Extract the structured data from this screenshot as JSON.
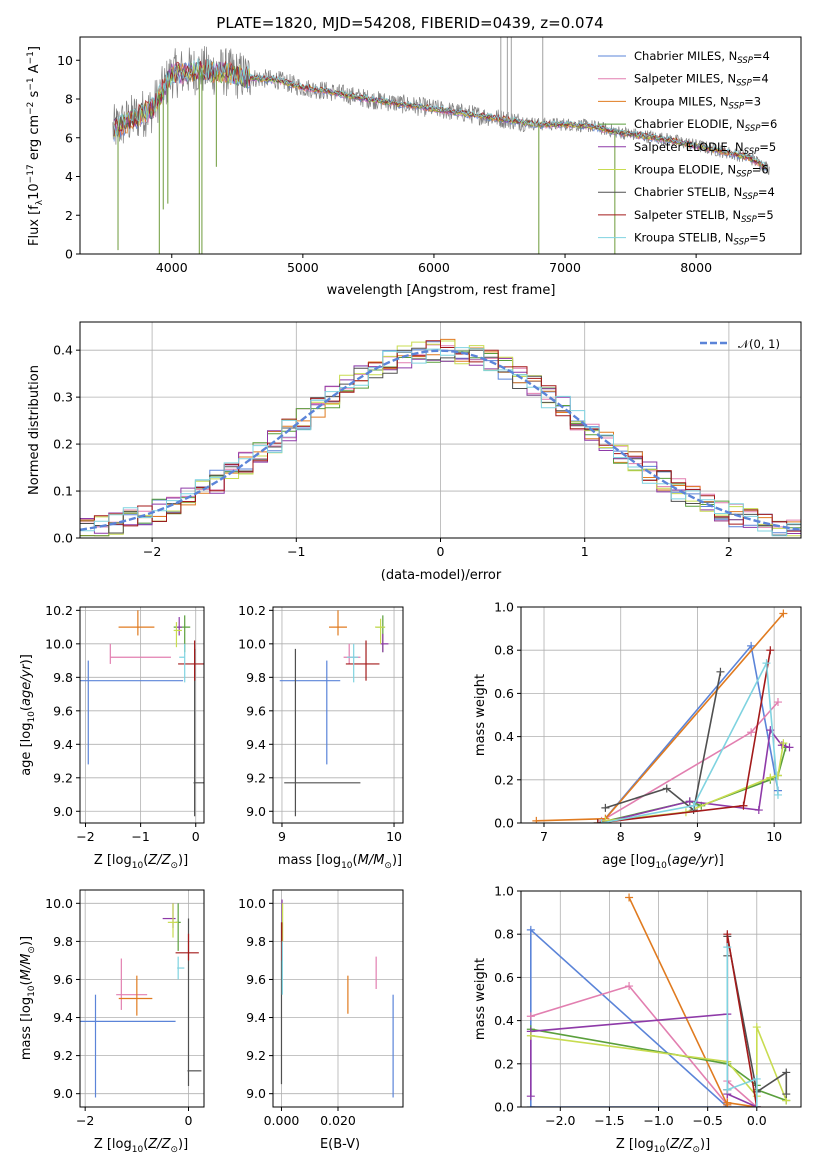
{
  "colors": {
    "chabrier_miles": "#5b84d8",
    "salpeter_miles": "#e27fb0",
    "kroupa_miles": "#e07b20",
    "chabrier_elodie": "#5a9f3c",
    "salpeter_elodie": "#8e3aa8",
    "kroupa_elodie": "#c8dc50",
    "chabrier_stelib": "#505050",
    "salpeter_stelib": "#a31a1a",
    "kroupa_stelib": "#7fd3e0",
    "spectrum": "#808080",
    "normal_curve": "#5b84d8"
  },
  "chart_data": [
    {
      "id": "spectrum",
      "type": "line",
      "title": "PLATE=1820, MJD=54208, FIBERID=0439, z=0.074",
      "xlabel": "wavelength [Angstrom, rest frame]",
      "ylabel": "Flux [fλ10⁻¹⁷ erg cm⁻² s⁻¹ A⁻¹]",
      "xlim": [
        3300,
        8800
      ],
      "ylim": [
        0,
        11.2
      ],
      "xticks": [
        4000,
        5000,
        6000,
        7000,
        8000
      ],
      "yticks": [
        0,
        2,
        4,
        6,
        8,
        10
      ],
      "grid": false,
      "legend_position": "top-right",
      "continuum": {
        "x": [
          3550,
          3700,
          3850,
          4000,
          4200,
          4400,
          4600,
          4800,
          5000,
          5200,
          5500,
          5800,
          6000,
          6200,
          6500,
          6800,
          7000,
          7200,
          7400,
          7600,
          7800,
          8000,
          8200,
          8400,
          8560
        ],
        "y": [
          6.4,
          7.0,
          7.5,
          9.3,
          9.5,
          9.4,
          9.1,
          9.0,
          8.6,
          8.4,
          8.0,
          7.7,
          7.5,
          7.3,
          7.0,
          6.7,
          6.7,
          6.6,
          6.3,
          6.1,
          5.9,
          5.6,
          5.3,
          5.0,
          4.4
        ]
      },
      "absorption_lines": [
        {
          "x": 3590,
          "y": 0.2
        },
        {
          "x": 3905,
          "y": 0.0
        },
        {
          "x": 3935,
          "y": 2.3
        },
        {
          "x": 3970,
          "y": 2.6
        },
        {
          "x": 4210,
          "y": 0.0
        },
        {
          "x": 4230,
          "y": 0.0
        },
        {
          "x": 4340,
          "y": 4.5
        },
        {
          "x": 6800,
          "y": 0.0
        },
        {
          "x": 7380,
          "y": 0.0
        }
      ],
      "spikes": [
        {
          "x": 6510,
          "y": 11.2
        },
        {
          "x": 6560,
          "y": 11.2
        },
        {
          "x": 6590,
          "y": 11.2
        },
        {
          "x": 6830,
          "y": 11.2
        }
      ],
      "legend": [
        {
          "key": "chabrier_miles",
          "label": "Chabrier MILES, N",
          "sub": "SSP",
          "tail": "=4"
        },
        {
          "key": "salpeter_miles",
          "label": "Salpeter MILES, N",
          "sub": "SSP",
          "tail": "=4"
        },
        {
          "key": "kroupa_miles",
          "label": "Kroupa MILES, N",
          "sub": "SSP",
          "tail": "=3"
        },
        {
          "key": "chabrier_elodie",
          "label": "Chabrier ELODIE, N",
          "sub": "SSP",
          "tail": "=6"
        },
        {
          "key": "salpeter_elodie",
          "label": "Salpeter ELODIE, N",
          "sub": "SSP",
          "tail": "=5"
        },
        {
          "key": "kroupa_elodie",
          "label": "Kroupa ELODIE, N",
          "sub": "SSP",
          "tail": "=6"
        },
        {
          "key": "chabrier_stelib",
          "label": "Chabrier STELIB, N",
          "sub": "SSP",
          "tail": "=4"
        },
        {
          "key": "salpeter_stelib",
          "label": "Salpeter STELIB, N",
          "sub": "SSP",
          "tail": "=5"
        },
        {
          "key": "kroupa_stelib",
          "label": "Kroupa STELIB, N",
          "sub": "SSP",
          "tail": "=5"
        }
      ]
    },
    {
      "id": "residuals",
      "type": "line",
      "xlabel": "(data-model)/error",
      "ylabel": "Normed distribution",
      "xlim": [
        -2.5,
        2.5
      ],
      "ylim": [
        0,
        0.46
      ],
      "xticks": [
        -2,
        -1,
        0,
        1,
        2
      ],
      "yticks": [
        0.0,
        0.1,
        0.2,
        0.3,
        0.4
      ],
      "grid": true,
      "legend_position": "top-right",
      "legend": [
        {
          "label": "𝒩(0, 1)"
        }
      ],
      "normal": {
        "mean": 0,
        "sigma": 1
      },
      "bin_width": 0.1,
      "bin_start": -2.5
    },
    {
      "id": "age_vs_z",
      "type": "scatter",
      "xlabel": "Z [log₁₀(Z/Z⊙)]",
      "ylabel": "age  [log₁₀(age/yr)]",
      "xlim": [
        -2.1,
        0.15
      ],
      "ylim": [
        8.93,
        10.22
      ],
      "xticks": [
        -2,
        -1,
        0
      ],
      "yticks": [
        9.0,
        9.2,
        9.4,
        9.6,
        9.8,
        10.0,
        10.2
      ],
      "grid": true,
      "points": [
        {
          "key": "chabrier_miles",
          "x": -1.95,
          "y": 9.78,
          "xerr": [
            0.85,
            1.72
          ],
          "yerr": [
            0.5,
            0.12
          ]
        },
        {
          "key": "salpeter_miles",
          "x": -1.55,
          "y": 9.92,
          "xerr": [
            0.0,
            1.1
          ],
          "yerr": [
            0.04,
            0.08
          ]
        },
        {
          "key": "kroupa_miles",
          "x": -1.05,
          "y": 10.1,
          "xerr": [
            0.35,
            0.3
          ],
          "yerr": [
            0.05,
            0.1
          ]
        },
        {
          "key": "chabrier_elodie",
          "x": -0.2,
          "y": 10.1,
          "xerr": [
            0.2,
            0.1
          ],
          "yerr": [
            0.15,
            0.07
          ]
        },
        {
          "key": "salpeter_elodie",
          "x": -0.3,
          "y": 10.1,
          "xerr": [
            0.05,
            0.05
          ],
          "yerr": [
            0.05,
            0.06
          ]
        },
        {
          "key": "kroupa_elodie",
          "x": -0.35,
          "y": 10.08,
          "xerr": [
            0.05,
            0.1
          ],
          "yerr": [
            0.1,
            0.05
          ]
        },
        {
          "key": "chabrier_stelib",
          "x": -0.02,
          "y": 9.17,
          "xerr": [
            0.02,
            0.3
          ],
          "yerr": [
            0.2,
            0.8
          ]
        },
        {
          "key": "salpeter_stelib",
          "x": -0.02,
          "y": 9.88,
          "xerr": [
            0.3,
            0.3
          ],
          "yerr": [
            0.1,
            0.14
          ]
        },
        {
          "key": "kroupa_stelib",
          "x": -0.2,
          "y": 9.92,
          "xerr": [
            0.1,
            0.0
          ],
          "yerr": [
            0.15,
            0.08
          ]
        }
      ]
    },
    {
      "id": "age_vs_mass",
      "type": "scatter",
      "xlabel": "mass [log₁₀(M/M⊙)]",
      "ylabel": "",
      "xlim": [
        8.92,
        10.08
      ],
      "ylim": [
        8.93,
        10.22
      ],
      "xticks": [
        9,
        10
      ],
      "yticks": [
        9.0,
        9.2,
        9.4,
        9.6,
        9.8,
        10.0,
        10.2
      ],
      "grid": true,
      "points": [
        {
          "key": "chabrier_miles",
          "x": 9.4,
          "y": 9.78,
          "xerr": [
            0.42,
            0.12
          ],
          "yerr": [
            0.5,
            0.12
          ]
        },
        {
          "key": "salpeter_miles",
          "x": 9.6,
          "y": 9.92,
          "xerr": [
            0.05,
            0.1
          ],
          "yerr": [
            0.04,
            0.08
          ]
        },
        {
          "key": "kroupa_miles",
          "x": 9.5,
          "y": 10.1,
          "xerr": [
            0.08,
            0.08
          ],
          "yerr": [
            0.05,
            0.1
          ]
        },
        {
          "key": "chabrier_elodie",
          "x": 9.9,
          "y": 10.1,
          "xerr": [
            0.06,
            0.02
          ],
          "yerr": [
            0.15,
            0.07
          ]
        },
        {
          "key": "salpeter_elodie",
          "x": 9.9,
          "y": 10.0,
          "xerr": [
            0.02,
            0.05
          ],
          "yerr": [
            0.05,
            0.06
          ]
        },
        {
          "key": "kroupa_elodie",
          "x": 9.88,
          "y": 10.1,
          "xerr": [
            0.05,
            0.04
          ],
          "yerr": [
            0.1,
            0.05
          ]
        },
        {
          "key": "chabrier_stelib",
          "x": 9.12,
          "y": 9.17,
          "xerr": [
            0.1,
            0.58
          ],
          "yerr": [
            0.2,
            0.8
          ]
        },
        {
          "key": "salpeter_stelib",
          "x": 9.75,
          "y": 9.88,
          "xerr": [
            0.18,
            0.12
          ],
          "yerr": [
            0.1,
            0.14
          ]
        },
        {
          "key": "kroupa_stelib",
          "x": 9.64,
          "y": 9.92,
          "xerr": [
            0.06,
            0.04
          ],
          "yerr": [
            0.15,
            0.08
          ]
        }
      ]
    },
    {
      "id": "weight_vs_age",
      "type": "line",
      "xlabel": "age  [log₁₀(age/yr)]",
      "ylabel": "mass weight",
      "xlim": [
        6.7,
        10.35
      ],
      "ylim": [
        0,
        1.0
      ],
      "xticks": [
        7,
        8,
        9,
        10
      ],
      "yticks": [
        0.0,
        0.2,
        0.4,
        0.6,
        0.8,
        1.0
      ],
      "grid": true,
      "series": [
        {
          "key": "chabrier_miles",
          "x": [
            7.75,
            9.7,
            10.05
          ],
          "y": [
            0.0,
            0.82,
            0.15
          ]
        },
        {
          "key": "salpeter_miles",
          "x": [
            7.75,
            9.7,
            10.05
          ],
          "y": [
            0.01,
            0.42,
            0.56
          ]
        },
        {
          "key": "kroupa_miles",
          "x": [
            6.9,
            7.8,
            10.12
          ],
          "y": [
            0.01,
            0.02,
            0.97
          ]
        },
        {
          "key": "chabrier_elodie",
          "x": [
            7.7,
            8.9,
            9.05,
            9.95,
            10.05,
            10.15
          ],
          "y": [
            0.0,
            0.1,
            0.08,
            0.2,
            0.22,
            0.35
          ]
        },
        {
          "key": "salpeter_elodie",
          "x": [
            7.75,
            8.9,
            9.8,
            9.95,
            10.1,
            10.2
          ],
          "y": [
            0.0,
            0.1,
            0.06,
            0.43,
            0.36,
            0.35
          ]
        },
        {
          "key": "kroupa_elodie",
          "x": [
            7.8,
            8.85,
            9.95,
            10.05,
            10.12
          ],
          "y": [
            0.01,
            0.05,
            0.21,
            0.22,
            0.37
          ]
        },
        {
          "key": "chabrier_stelib",
          "x": [
            7.8,
            8.6,
            8.95,
            9.3
          ],
          "y": [
            0.07,
            0.16,
            0.06,
            0.7
          ]
        },
        {
          "key": "salpeter_stelib",
          "x": [
            7.7,
            9.6,
            9.95
          ],
          "y": [
            0.0,
            0.08,
            0.8
          ]
        },
        {
          "key": "kroupa_stelib",
          "x": [
            7.75,
            8.95,
            9.9,
            10.05
          ],
          "y": [
            0.0,
            0.08,
            0.74,
            0.13
          ]
        }
      ]
    },
    {
      "id": "mass_vs_z",
      "type": "scatter",
      "xlabel": "Z [log₁₀(Z/Z⊙)]",
      "ylabel": "mass [log₁₀(M/M⊙)]",
      "xlim": [
        -2.1,
        0.3
      ],
      "ylim": [
        8.93,
        10.07
      ],
      "xticks": [
        -2,
        0
      ],
      "yticks": [
        9.0,
        9.2,
        9.4,
        9.6,
        9.8,
        10.0
      ],
      "grid": true,
      "points": [
        {
          "key": "chabrier_miles",
          "x": -1.8,
          "y": 9.38,
          "xerr": [
            0.3,
            1.55
          ],
          "yerr": [
            0.4,
            0.14
          ]
        },
        {
          "key": "salpeter_miles",
          "x": -1.3,
          "y": 9.52,
          "xerr": [
            0.1,
            0.5
          ],
          "yerr": [
            0.08,
            0.19
          ]
        },
        {
          "key": "kroupa_miles",
          "x": -1.0,
          "y": 9.5,
          "xerr": [
            0.35,
            0.3
          ],
          "yerr": [
            0.09,
            0.12
          ]
        },
        {
          "key": "chabrier_elodie",
          "x": -0.2,
          "y": 9.9,
          "xerr": [
            0.05,
            0.05
          ],
          "yerr": [
            0.15,
            0.1
          ]
        },
        {
          "key": "salpeter_elodie",
          "x": -0.3,
          "y": 9.92,
          "xerr": [
            0.2,
            0.05
          ],
          "yerr": [
            0.05,
            0.08
          ]
        },
        {
          "key": "kroupa_elodie",
          "x": -0.3,
          "y": 9.9,
          "xerr": [
            0.1,
            0.1
          ],
          "yerr": [
            0.08,
            0.1
          ]
        },
        {
          "key": "chabrier_stelib",
          "x": 0.0,
          "y": 9.12,
          "xerr": [
            0.02,
            0.25
          ],
          "yerr": [
            0.08,
            0.8
          ]
        },
        {
          "key": "salpeter_stelib",
          "x": 0.0,
          "y": 9.74,
          "xerr": [
            0.25,
            0.2
          ],
          "yerr": [
            0.04,
            0.1
          ]
        },
        {
          "key": "kroupa_stelib",
          "x": -0.2,
          "y": 9.66,
          "xerr": [
            0.02,
            0.12
          ],
          "yerr": [
            0.06,
            0.06
          ]
        }
      ]
    },
    {
      "id": "mass_vs_ebv",
      "type": "scatter",
      "xlabel": "E(B-V)",
      "ylabel": "",
      "xlim": [
        -0.003,
        0.043
      ],
      "ylim": [
        8.93,
        10.07
      ],
      "xticks": [
        0.0,
        0.02
      ],
      "yticks": [
        9.0,
        9.2,
        9.4,
        9.6,
        9.8,
        10.0
      ],
      "grid": true,
      "points": [
        {
          "key": "chabrier_miles",
          "x": 0.0395,
          "y": 9.38,
          "yerr": [
            0.4,
            0.14
          ]
        },
        {
          "key": "salpeter_miles",
          "x": 0.0335,
          "y": 9.62,
          "yerr": [
            0.07,
            0.1
          ]
        },
        {
          "key": "kroupa_miles",
          "x": 0.0235,
          "y": 9.52,
          "yerr": [
            0.1,
            0.1
          ]
        },
        {
          "key": "chabrier_elodie",
          "x": 0.0002,
          "y": 9.92,
          "yerr": [
            0.12,
            0.08
          ]
        },
        {
          "key": "salpeter_elodie",
          "x": 0.0002,
          "y": 9.92,
          "yerr": [
            0.06,
            0.1
          ]
        },
        {
          "key": "kroupa_elodie",
          "x": 0.0004,
          "y": 9.9,
          "yerr": [
            0.1,
            0.1
          ]
        },
        {
          "key": "chabrier_stelib",
          "x": 0.0,
          "y": 9.4,
          "yerr": [
            0.35,
            0.5
          ]
        },
        {
          "key": "salpeter_stelib",
          "x": 0.0001,
          "y": 9.8,
          "yerr": [
            0.1,
            0.1
          ]
        },
        {
          "key": "kroupa_stelib",
          "x": 0.0003,
          "y": 9.66,
          "yerr": [
            0.14,
            0.14
          ]
        }
      ]
    },
    {
      "id": "weight_vs_z",
      "type": "line",
      "xlabel": "Z [log₁₀(Z/Z⊙)]",
      "ylabel": "mass weight",
      "xlim": [
        -2.4,
        0.45
      ],
      "ylim": [
        0,
        1.0
      ],
      "xticks": [
        -2.0,
        -1.5,
        -1.0,
        -0.5,
        0.0
      ],
      "yticks": [
        0.0,
        0.2,
        0.4,
        0.6,
        0.8,
        1.0
      ],
      "grid": true,
      "series": [
        {
          "key": "chabrier_miles",
          "x": [
            -0.3,
            -2.3,
            -2.3,
            -0.3,
            0.0
          ],
          "y": [
            0.0,
            0.0,
            0.82,
            0.0,
            0.0
          ]
        },
        {
          "key": "salpeter_miles",
          "x": [
            -2.3,
            -1.3,
            -0.3,
            -0.3,
            0.0
          ],
          "y": [
            0.42,
            0.56,
            0.01,
            0.12,
            0.0
          ]
        },
        {
          "key": "kroupa_miles",
          "x": [
            -1.3,
            -0.3,
            -0.3,
            0.0
          ],
          "y": [
            0.97,
            0.01,
            0.02,
            0.0
          ]
        },
        {
          "key": "chabrier_elodie",
          "x": [
            -2.3,
            -0.3,
            0.0,
            0.0,
            0.3
          ],
          "y": [
            0.36,
            0.2,
            0.1,
            0.08,
            0.03
          ]
        },
        {
          "key": "salpeter_elodie",
          "x": [
            -2.3,
            -2.3,
            -0.3,
            -0.3,
            0.0,
            0.0
          ],
          "y": [
            0.05,
            0.35,
            0.43,
            0.06,
            0.0,
            0.0
          ]
        },
        {
          "key": "kroupa_elodie",
          "x": [
            -2.3,
            -0.3,
            0.0,
            0.0,
            0.3
          ],
          "y": [
            0.33,
            0.21,
            0.05,
            0.37,
            0.03
          ]
        },
        {
          "key": "chabrier_stelib",
          "x": [
            -0.3,
            -0.3,
            0.0,
            0.3,
            0.3
          ],
          "y": [
            0.7,
            0.79,
            0.07,
            0.16,
            0.06
          ]
        },
        {
          "key": "salpeter_stelib",
          "x": [
            -0.3,
            -0.3,
            0.0
          ],
          "y": [
            0.08,
            0.8,
            0.0
          ]
        },
        {
          "key": "kroupa_stelib",
          "x": [
            -0.3,
            -0.3,
            0.0,
            0.0
          ],
          "y": [
            0.74,
            0.08,
            0.13,
            0.0
          ]
        }
      ]
    }
  ]
}
